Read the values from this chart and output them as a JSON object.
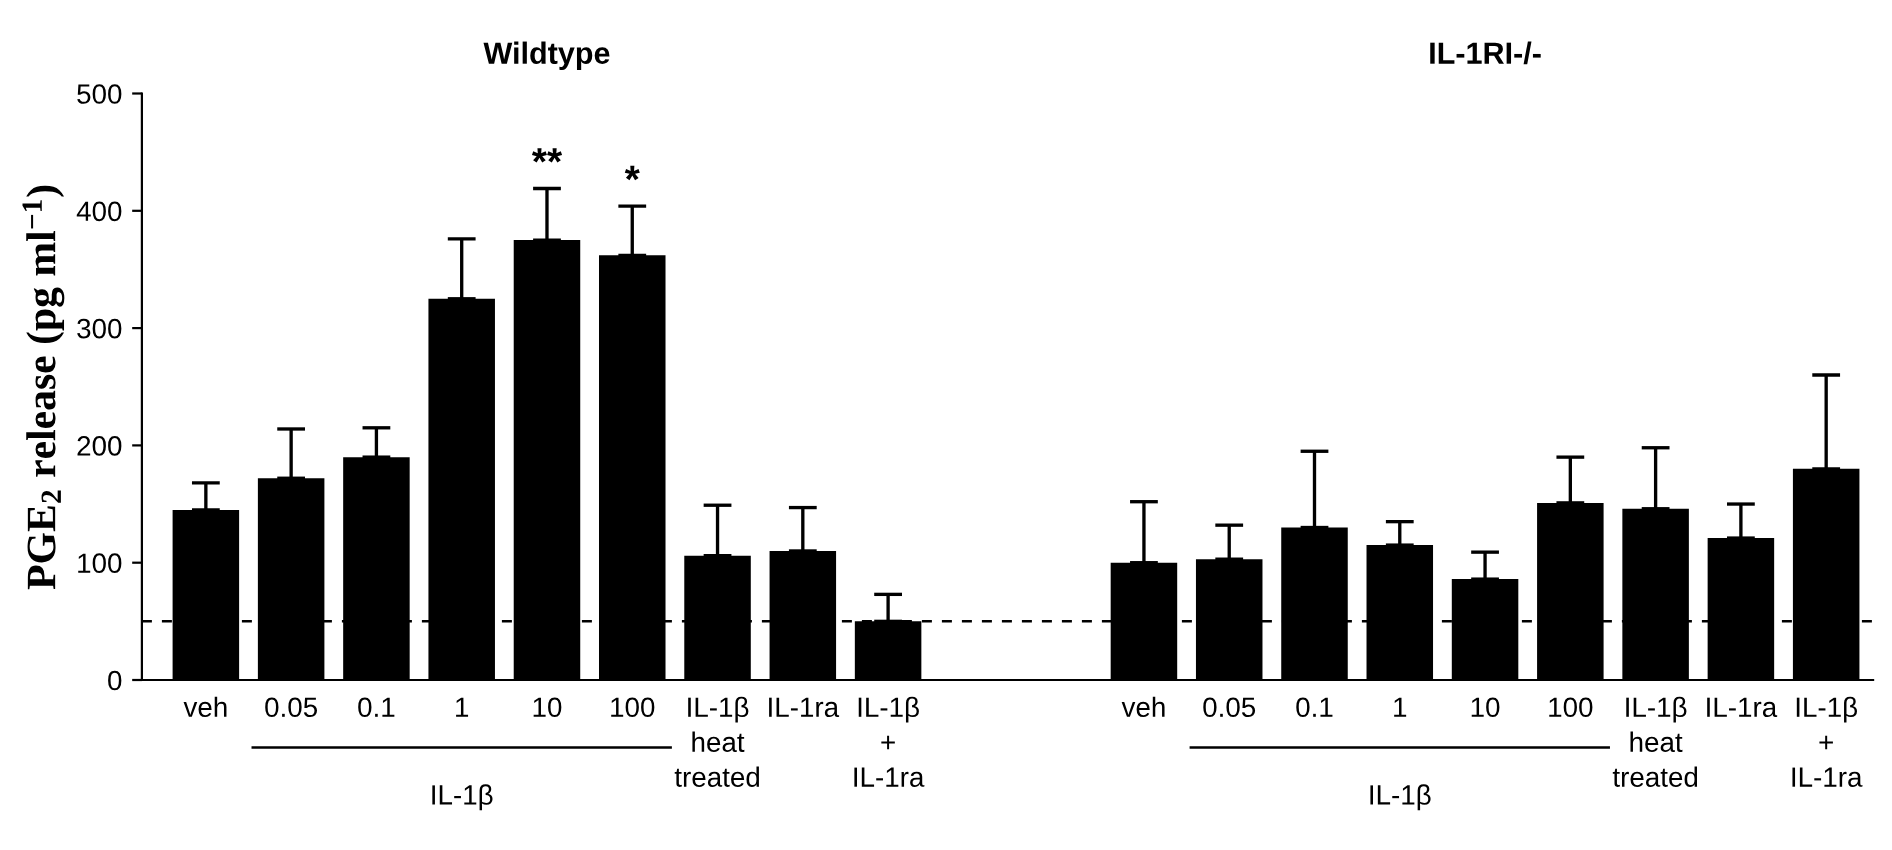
{
  "chart_data": {
    "type": "bar",
    "categories": [
      "veh",
      "0.05",
      "0.1",
      "1",
      "10",
      "100",
      "IL-1β\nheat\ntreated",
      "IL-1ra",
      "IL-1β\n+\nIL-1ra",
      null,
      null,
      "veh",
      "0.05",
      "0.1",
      "1",
      "10",
      "100",
      "IL-1β\nheat\ntreated",
      "IL-1ra",
      "IL-1β\n+\nIL-1ra"
    ],
    "series": [
      {
        "color": "#000000",
        "values": [
          145,
          172,
          190,
          325,
          375,
          362,
          106,
          110,
          50,
          null,
          null,
          100,
          103,
          130,
          115,
          86,
          151,
          146,
          121,
          180
        ],
        "errors": [
          [
            145,
            168
          ],
          [
            172,
            214
          ],
          [
            190,
            215
          ],
          [
            325,
            376
          ],
          [
            375,
            419
          ],
          [
            362,
            404
          ],
          [
            106,
            149
          ],
          [
            110,
            147
          ],
          [
            50,
            73
          ],
          null,
          null,
          [
            100,
            152
          ],
          [
            103,
            132
          ],
          [
            130,
            195
          ],
          [
            115,
            135
          ],
          [
            86,
            109
          ],
          [
            151,
            190
          ],
          [
            146,
            198
          ],
          [
            121,
            150
          ],
          [
            180,
            260
          ]
        ]
      }
    ],
    "ylabel": "PGE$_{2}$ release (pg ml$^{−1}$)",
    "ylim": [
      0,
      500
    ],
    "yticks": [
      0,
      100,
      200,
      300,
      400,
      500
    ],
    "ref_lines": [
      {
        "axis": "y",
        "value": 50,
        "line_style": "dashed",
        "color": "#000000"
      }
    ],
    "annotations": [
      "Wildtype",
      "IL-1RI-/-",
      "IL-1β",
      "IL-1β",
      {
        "text": "**",
        "x": "10",
        "y": 419
      },
      {
        "text": "*",
        "x": "100",
        "y": 404
      }
    ],
    "grid": false,
    "legend": false
  }
}
